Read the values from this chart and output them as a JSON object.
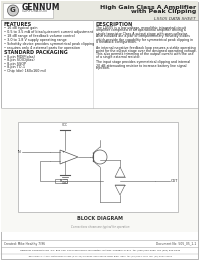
{
  "title_line1": "High Gain Class A Amplifier",
  "title_line2": "with Peak Clipping",
  "product_id": "LS505 DATA SHEET",
  "company": "GENNUM",
  "company_sub": "CORPORATION",
  "bg_color": "#f5f5f0",
  "header_bg": "#e8e8e0",
  "features_title": "FEATURES",
  "features": [
    "16 dB typical gain",
    "0.5 to 3.5 mA of bias/quiescent current adjustment",
    "18 dB range of feedback volume control",
    "3.0 to 1.8 V supply operating range",
    "Schottky device provides symmetrical peak clipping",
    "requires only 4 external parts for operation"
  ],
  "packaging_title": "STANDARD PACKAGING",
  "packaging": [
    "8-pin MDIP(plas)",
    "8-pin SOIC(plas)",
    "8-pin SSOP",
    "8-pin TO-1",
    "Chip (die) 160x160 mil"
  ],
  "description_title": "DESCRIPTION",
  "description": [
    "The LS505 is a low voltage, monolithic integrated circuit",
    "amplifier comprised of an operational amplifier driving a",
    "single transistor Class A output stage with open collector.",
    "Also included are a pair of complementary Schottky diodes",
    "which provide the capability for symmetrical peak clipping in",
    "a feedback configuration.",
    "",
    "An internal negative feedback loop ensures a stable operating",
    "point for the output stage over the designed operating voltage.",
    "This also permits trimming of the output current with the use",
    "of a single external resistor.",
    "",
    "The input stage provides symmetrical clipping and internal",
    "20 dB attenuating resistor to increase battery line signal",
    "rejection."
  ],
  "block_diagram_label": "BLOCK DIAGRAM",
  "footer_left": "Created: Mike Healthy 7/96",
  "footer_right": "Document No: 505_05_1-1",
  "footer_company": "GENNUM CORPORATION  P.O. Box 489, 970 Fraser Drive, Burlington, Ontario, Canada L7L5Y7  tel. (905) 632-2996  fax (905) 632-5546",
  "footer_bottom": "Japan Branch: A-302, Motoyanagi Village (3-15-43) Miyamae, Engineering Tower Bldg, Japan  tel: (33) 5594-1700  fax: (33) 5594-79200",
  "border_color": "#999999",
  "text_color": "#222222",
  "light_gray": "#cccccc",
  "mid_gray": "#888888"
}
